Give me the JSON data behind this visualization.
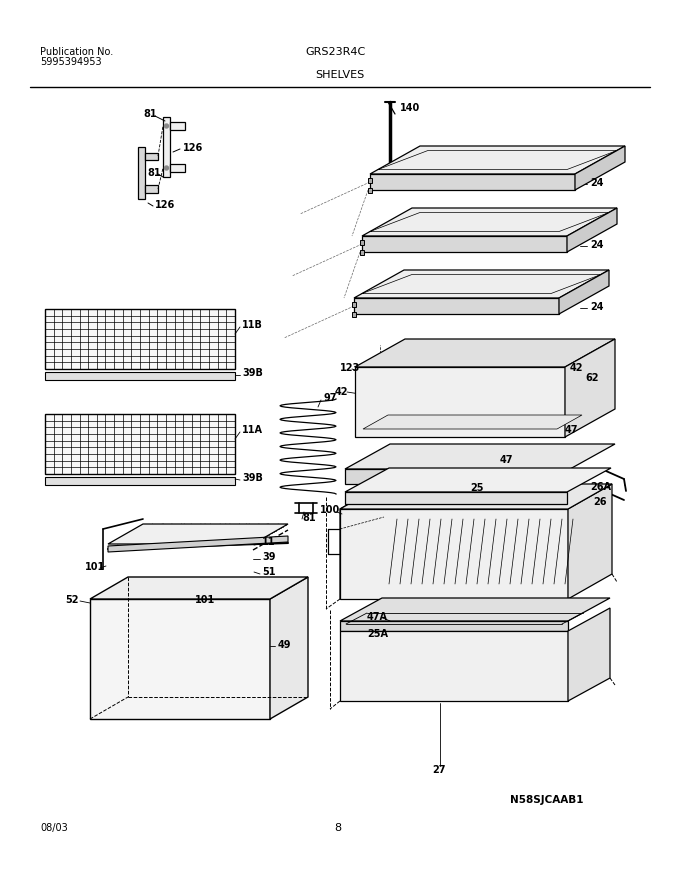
{
  "title": "SHELVES",
  "pub_no_label": "Publication No.",
  "pub_no": "5995394953",
  "model": "GRS23R4C",
  "date": "08/03",
  "page": "8",
  "image_label": "N58SJCAAB1",
  "bg_color": "#ffffff",
  "line_color": "#000000",
  "text_color": "#000000"
}
